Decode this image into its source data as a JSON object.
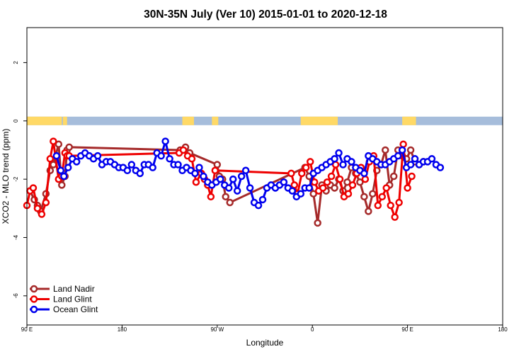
{
  "chart_data": {
    "type": "line",
    "title": "30N-35N July (Ver 10)   2015-01-01 to 2020-12-18",
    "xlabel": "Longitude",
    "ylabel": "XCO2 - MLO trend (ppm)",
    "xlim": [
      90,
      450
    ],
    "ylim": [
      -7,
      3.2
    ],
    "x_ticks": [
      {
        "value": 90,
        "label": "90 E"
      },
      {
        "value": 180,
        "label": "180"
      },
      {
        "value": 270,
        "label": "90 W"
      },
      {
        "value": 360,
        "label": "0"
      },
      {
        "value": 450,
        "label": "90 E"
      },
      {
        "value": 540,
        "label": "180"
      }
    ],
    "y_ticks": [
      {
        "value": 2,
        "label": "2"
      },
      {
        "value": 0,
        "label": "0"
      },
      {
        "value": -2,
        "label": "-2"
      },
      {
        "value": -4,
        "label": "-4"
      },
      {
        "value": -6,
        "label": "-6"
      }
    ],
    "xlim_data": [
      90,
      540
    ],
    "land_mask": {
      "colors": {
        "land": "#ffd966",
        "ocean": "#a6bddb"
      },
      "land_ranges": [
        [
          90,
          123
        ],
        [
          124,
          128
        ],
        [
          237,
          248
        ],
        [
          265,
          271
        ],
        [
          349,
          384
        ],
        [
          445,
          458
        ]
      ]
    },
    "series": [
      {
        "name": "Land Nadir",
        "color": "#a52a2a",
        "x": [
          93,
          97,
          100,
          103,
          108,
          112,
          115,
          120,
          123,
          126,
          128,
          130,
          235,
          240,
          244,
          270,
          272,
          275,
          278,
          282,
          353,
          357,
          361,
          365,
          369,
          373,
          377,
          381,
          385,
          389,
          393,
          397,
          401,
          405,
          409,
          413,
          417,
          421,
          425,
          429,
          433,
          437,
          441,
          445,
          449,
          453,
          457,
          461,
          465
        ],
        "y": [
          -2.4,
          -2.7,
          -2.9,
          -3.1,
          -2.5,
          -1.7,
          -1.5,
          -0.8,
          -2.2,
          -1.9,
          -1.0,
          -0.9,
          -1.0,
          -0.9,
          -1.1,
          -1.5,
          -1.9,
          -2.0,
          -2.6,
          -2.8,
          -1.6,
          -1.9,
          -2.5,
          -3.5,
          -2.2,
          -2.4,
          -2.2,
          -2.3,
          -2.0,
          -2.4,
          -2.1,
          -1.6,
          -1.8,
          -2.1,
          -2.6,
          -3.1,
          -2.5,
          -1.7,
          -1.5,
          -1.0,
          -2.2,
          -1.9,
          -1.0,
          -1.2,
          -1.3,
          -1.0,
          -1.4,
          -1.5,
          -1.4
        ]
      },
      {
        "name": "Land Glint",
        "color": "#ee0000",
        "x": [
          90,
          93,
          96,
          100,
          104,
          108,
          112,
          115,
          120,
          123,
          126,
          128,
          130,
          234,
          238,
          242,
          246,
          250,
          255,
          258,
          261,
          264,
          268,
          340,
          343,
          346,
          350,
          354,
          358,
          362,
          366,
          370,
          374,
          378,
          382,
          386,
          390,
          394,
          398,
          402,
          406,
          410,
          414,
          418,
          422,
          426,
          430,
          434,
          438,
          442,
          446,
          450,
          454
        ],
        "y": [
          -2.9,
          -2.4,
          -2.3,
          -3.0,
          -3.2,
          -2.8,
          -1.3,
          -0.7,
          -2.0,
          -1.9,
          -1.1,
          -1.2,
          -1.2,
          -1.1,
          -1.0,
          -1.2,
          -1.3,
          -2.1,
          -1.8,
          -2.0,
          -2.2,
          -2.6,
          -1.7,
          -1.8,
          -2.2,
          -2.5,
          -1.8,
          -1.6,
          -1.4,
          -2.1,
          -2.4,
          -2.3,
          -2.1,
          -1.9,
          -1.5,
          -2.0,
          -2.6,
          -2.5,
          -2.2,
          -1.8,
          -1.6,
          -2.0,
          -1.4,
          -1.2,
          -2.9,
          -2.6,
          -2.3,
          -2.9,
          -3.3,
          -2.8,
          -0.8,
          -2.3,
          -1.9
        ]
      },
      {
        "name": "Ocean Glint",
        "color": "#0000ee",
        "x": [
          118,
          122,
          125,
          129,
          133,
          137,
          141,
          145,
          149,
          153,
          157,
          161,
          165,
          169,
          173,
          177,
          181,
          185,
          189,
          193,
          197,
          201,
          205,
          209,
          213,
          217,
          221,
          225,
          229,
          233,
          237,
          241,
          245,
          249,
          253,
          257,
          261,
          265,
          269,
          273,
          277,
          281,
          285,
          289,
          293,
          297,
          301,
          305,
          309,
          313,
          317,
          321,
          325,
          329,
          333,
          337,
          341,
          345,
          349,
          353,
          357,
          361,
          365,
          369,
          373,
          377,
          381,
          385,
          389,
          393,
          397,
          401,
          405,
          409,
          413,
          417,
          421,
          425,
          429,
          433,
          437,
          441,
          445,
          449,
          453,
          457,
          461,
          465,
          469,
          473,
          477,
          481
        ],
        "y": [
          -1.2,
          -1.7,
          -1.9,
          -1.6,
          -1.3,
          -1.4,
          -1.2,
          -1.1,
          -1.2,
          -1.3,
          -1.2,
          -1.5,
          -1.4,
          -1.4,
          -1.5,
          -1.6,
          -1.6,
          -1.7,
          -1.5,
          -1.7,
          -1.8,
          -1.5,
          -1.5,
          -1.6,
          -1.1,
          -1.2,
          -0.7,
          -1.3,
          -1.5,
          -1.5,
          -1.7,
          -1.6,
          -1.7,
          -1.8,
          -1.6,
          -1.9,
          -2.1,
          -2.2,
          -2.1,
          -2.0,
          -2.2,
          -2.3,
          -2.0,
          -2.4,
          -1.9,
          -1.7,
          -2.3,
          -2.8,
          -2.9,
          -2.7,
          -2.3,
          -2.2,
          -2.3,
          -2.2,
          -2.1,
          -2.3,
          -2.4,
          -2.6,
          -2.5,
          -2.3,
          -2.3,
          -1.8,
          -1.7,
          -1.6,
          -1.5,
          -1.4,
          -1.3,
          -1.1,
          -1.5,
          -1.3,
          -1.4,
          -1.6,
          -1.7,
          -1.8,
          -1.2,
          -1.3,
          -1.4,
          -1.5,
          -1.5,
          -1.4,
          -1.3,
          -1.2,
          -1.0,
          -1.6,
          -1.5,
          -1.3,
          -1.5,
          -1.4,
          -1.4,
          -1.3,
          -1.5,
          -1.6
        ]
      }
    ],
    "legend": {
      "position": "bottom-left"
    },
    "grid": false
  }
}
